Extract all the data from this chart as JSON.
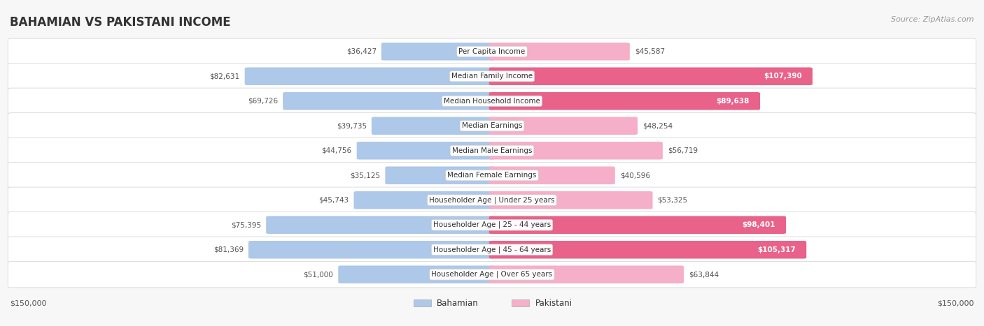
{
  "title": "BAHAMIAN VS PAKISTANI INCOME",
  "source": "Source: ZipAtlas.com",
  "categories": [
    "Per Capita Income",
    "Median Family Income",
    "Median Household Income",
    "Median Earnings",
    "Median Male Earnings",
    "Median Female Earnings",
    "Householder Age | Under 25 years",
    "Householder Age | 25 - 44 years",
    "Householder Age | 45 - 64 years",
    "Householder Age | Over 65 years"
  ],
  "bahamian": [
    36427,
    82631,
    69726,
    39735,
    44756,
    35125,
    45743,
    75395,
    81369,
    51000
  ],
  "pakistani": [
    45587,
    107390,
    89638,
    48254,
    56719,
    40596,
    53325,
    98401,
    105317,
    63844
  ],
  "max_val": 150000,
  "bahamian_color_low": "#adc8e8",
  "bahamian_color_high": "#6b9fd4",
  "pakistani_color_low": "#f5afc8",
  "pakistani_color_high": "#e8628a",
  "bg_color": "#f7f7f7",
  "row_bg_even": "#ffffff",
  "row_bg_odd": "#f0f0f0",
  "row_border": "#d0d0d0",
  "legend_bahamian": "Bahamian",
  "legend_pakistani": "Pakistani",
  "threshold_white_label": 85000,
  "title_color": "#333333",
  "source_color": "#999999",
  "label_dark": "#555555",
  "label_white": "#ffffff"
}
